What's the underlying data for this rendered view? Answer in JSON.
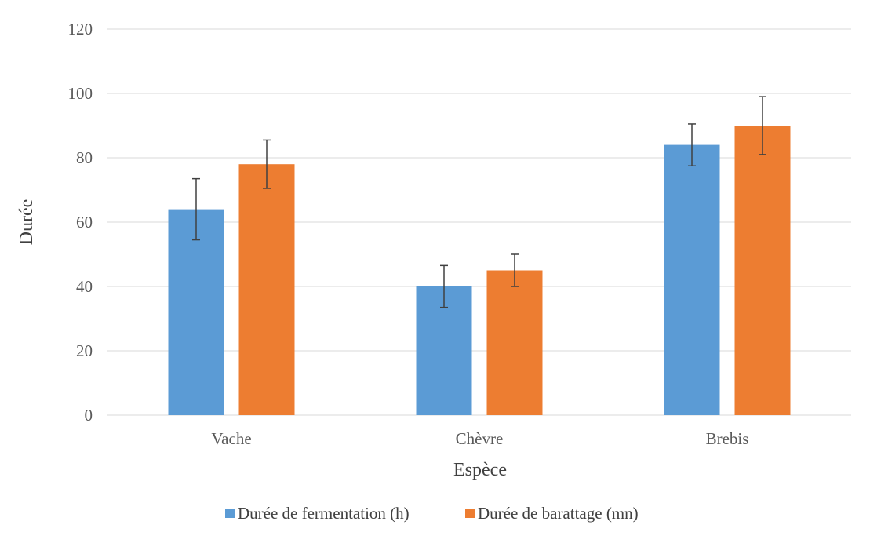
{
  "chart_data": {
    "type": "bar",
    "categories": [
      "Vache",
      "Chèvre",
      "Brebis"
    ],
    "series": [
      {
        "name": "Durée de fermentation (h)",
        "color": "#5b9bd5",
        "values": [
          64,
          40,
          84
        ],
        "error": [
          9.5,
          6.5,
          6.5
        ]
      },
      {
        "name": "Durée de barattage (mn)",
        "color": "#ed7d31",
        "values": [
          78,
          45,
          90
        ],
        "error": [
          7.5,
          5,
          9
        ]
      }
    ],
    "title": "",
    "xlabel": "Espèce",
    "ylabel": "Durée",
    "ylim": [
      0,
      120
    ],
    "yticks": [
      0,
      20,
      40,
      60,
      80,
      100,
      120
    ],
    "grid": true,
    "legend": "bottom"
  }
}
